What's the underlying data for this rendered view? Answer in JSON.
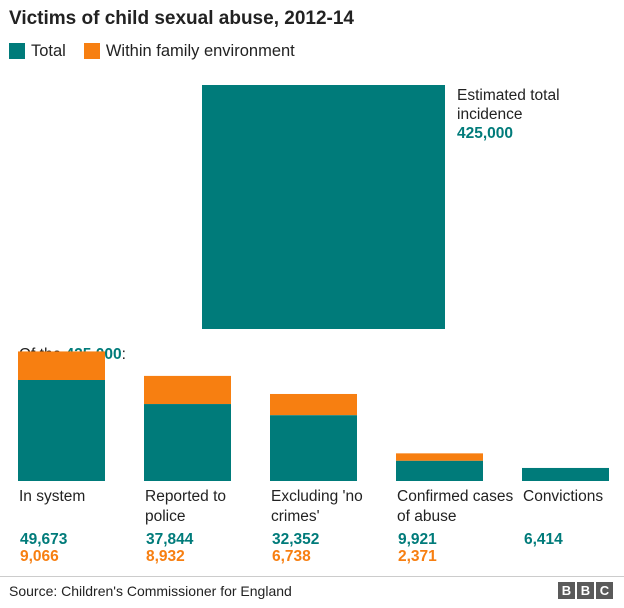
{
  "colors": {
    "total": "#007b7a",
    "family": "#f77f11",
    "text": "#222222"
  },
  "chart_data": {
    "type": "bar",
    "title": "Victims of child sexual abuse, 2012-14",
    "legend": [
      {
        "name": "Total",
        "color": "#007b7a"
      },
      {
        "name": "Within family environment",
        "color": "#f77f11"
      }
    ],
    "headline": {
      "label": "Estimated total incidence",
      "value": 425000,
      "value_text": "425,000"
    },
    "subtitle_prefix": "Of the ",
    "subtitle_value": "425,000",
    "subtitle_suffix": ":",
    "categories": [
      "In system",
      "Reported to police",
      "Excluding 'no crimes'",
      "Confirmed cases of abuse",
      "Convictions"
    ],
    "series": [
      {
        "name": "Total",
        "values": [
          49673,
          37844,
          32352,
          9921,
          6414
        ],
        "labels": [
          "49,673",
          "37,844",
          "32,352",
          "9,921",
          "6,414"
        ]
      },
      {
        "name": "Within family environment",
        "values": [
          9066,
          8932,
          6738,
          2371,
          null
        ],
        "labels": [
          "9,066",
          "8,932",
          "6,738",
          "2,371",
          ""
        ]
      }
    ],
    "stacked": true,
    "ylim": [
      0,
      49673
    ]
  },
  "source": "Source: Children's Commissioner for England",
  "logo": [
    "B",
    "B",
    "C"
  ]
}
